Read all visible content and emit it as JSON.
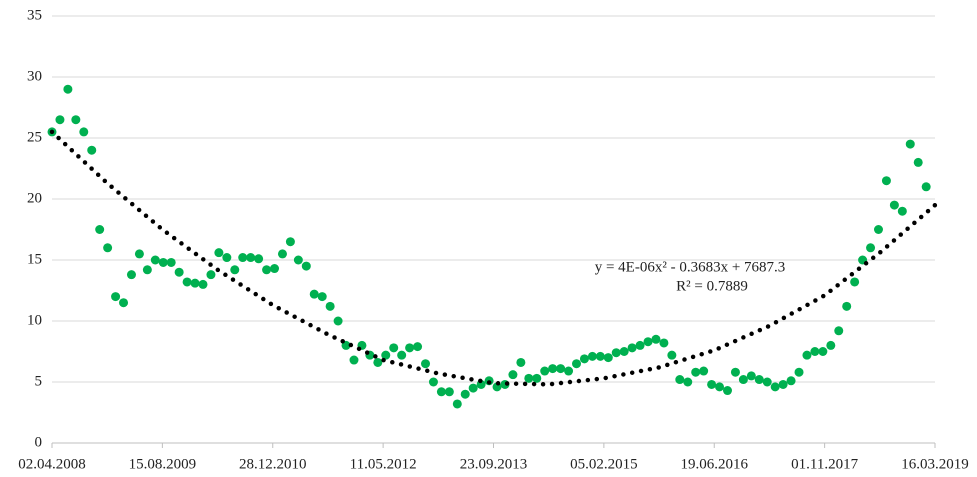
{
  "chart_data": {
    "type": "scatter",
    "x": [
      39540,
      39576,
      39612,
      39648,
      39684,
      39720,
      39756,
      39792,
      39828,
      39864,
      39900,
      39936,
      39972,
      40008,
      40044,
      40080,
      40116,
      40152,
      40188,
      40224,
      40260,
      40296,
      40332,
      40368,
      40404,
      40440,
      40476,
      40512,
      40548,
      40584,
      40620,
      40656,
      40692,
      40728,
      40764,
      40800,
      40836,
      40872,
      40908,
      40944,
      40980,
      41016,
      41052,
      41088,
      41124,
      41160,
      41196,
      41232,
      41268,
      41304,
      41340,
      41376,
      41412,
      41448,
      41484,
      41520,
      41556,
      41592,
      41628,
      41664,
      41700,
      41736,
      41772,
      41808,
      41844,
      41880,
      41916,
      41952,
      41988,
      42024,
      42060,
      42096,
      42132,
      42168,
      42204,
      42240,
      42276,
      42312,
      42348,
      42384,
      42420,
      42456,
      42492,
      42528,
      42564,
      42600,
      42636,
      42672,
      42708,
      42744,
      42780,
      42816,
      42852,
      42888,
      42924,
      42960,
      42996,
      43032,
      43068,
      43104,
      43140,
      43176,
      43212,
      43248,
      43284,
      43320,
      43356,
      43392,
      43428,
      43464,
      43500
    ],
    "values": [
      25.5,
      26.5,
      29,
      26.5,
      25.5,
      24,
      17.5,
      16,
      12,
      11.5,
      13.8,
      15.5,
      14.2,
      15,
      14.8,
      14.8,
      14,
      13.2,
      13.1,
      13,
      13.8,
      15.6,
      15.2,
      14.2,
      15.2,
      15.2,
      15.1,
      14.2,
      14.3,
      15.5,
      16.5,
      15,
      14.5,
      12.2,
      12,
      11.2,
      10,
      8,
      6.8,
      8,
      7.2,
      6.6,
      7.2,
      7.8,
      7.2,
      7.8,
      7.9,
      6.5,
      5,
      4.2,
      4.2,
      3.2,
      4,
      4.5,
      4.8,
      5.1,
      4.6,
      4.8,
      5.6,
      6.6,
      5.3,
      5.3,
      5.9,
      6.1,
      6.1,
      5.9,
      6.5,
      6.9,
      7.1,
      7.1,
      7,
      7.4,
      7.5,
      7.8,
      8,
      8.3,
      8.5,
      8.2,
      7.2,
      5.2,
      5,
      5.8,
      5.9,
      4.8,
      4.6,
      4.3,
      5.8,
      5.2,
      5.5,
      5.2,
      5,
      4.6,
      4.8,
      5.1,
      5.8,
      7.2,
      7.5,
      7.5,
      8,
      9.2,
      11.2,
      13.2,
      15,
      16,
      17.5,
      21.5,
      19.5,
      19,
      24.5,
      23,
      21
    ],
    "color": "#00b050",
    "trendline": {
      "x": [
        39540,
        39790,
        40040,
        40290,
        40540,
        40790,
        41040,
        41290,
        41540,
        41790,
        42040,
        42290,
        42540,
        42790,
        43040,
        43290,
        43540
      ],
      "values": [
        25.5,
        21.3,
        17.5,
        14.2,
        11.3,
        8.9,
        6.8,
        5.7,
        4.9,
        4.8,
        5.3,
        6.2,
        7.6,
        9.6,
        12.1,
        15.6,
        19.5
      ],
      "color": "#000000"
    },
    "annotations": [
      "y = 4E-06x² - 0.3683x + 7687.3",
      "R² = 0.7889"
    ],
    "xlim": [
      39540,
      43540
    ],
    "xticks": [
      {
        "value": 39540,
        "label": "02.04.2008"
      },
      {
        "value": 40040,
        "label": "15.08.2009"
      },
      {
        "value": 40540,
        "label": "28.12.2010"
      },
      {
        "value": 41040,
        "label": "11.05.2012"
      },
      {
        "value": 41540,
        "label": "23.09.2013"
      },
      {
        "value": 42040,
        "label": "05.02.2015"
      },
      {
        "value": 42540,
        "label": "19.06.2016"
      },
      {
        "value": 43040,
        "label": "01.11.2017"
      },
      {
        "value": 43540,
        "label": "16.03.2019"
      }
    ],
    "ylim": [
      0,
      35
    ],
    "yticks": [
      0,
      5,
      10,
      15,
      20,
      25,
      30,
      35
    ],
    "grid": true
  }
}
